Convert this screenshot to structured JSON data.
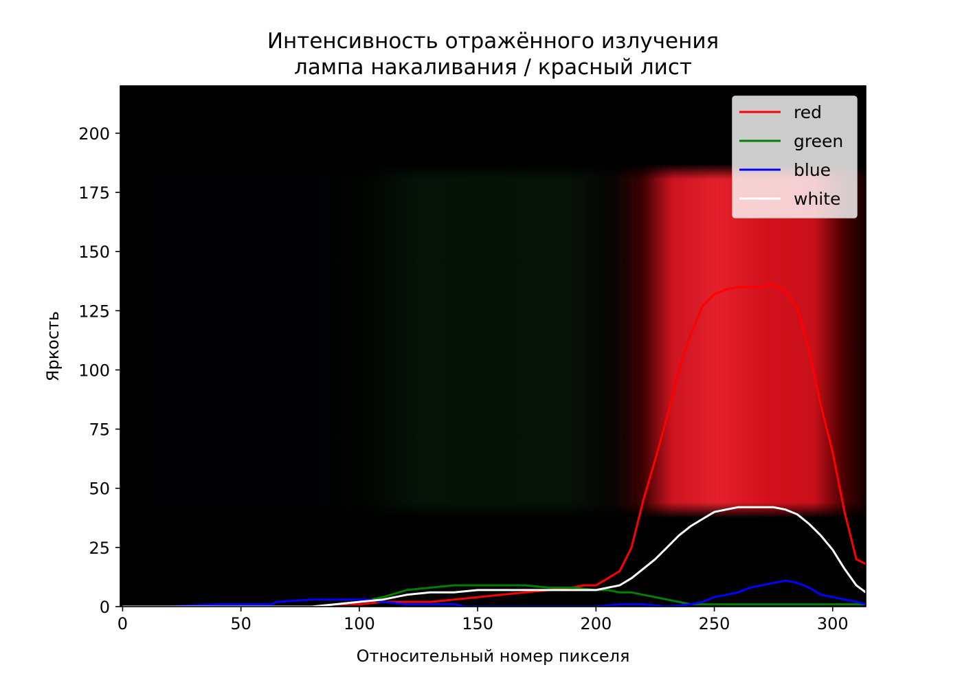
{
  "chart_data": {
    "type": "line",
    "title": [
      "Интенсивность отражённого излучения",
      "лампа накаливания / красный лист"
    ],
    "xlabel": "Относительный номер пикселя",
    "ylabel": "Яркость",
    "xlim": [
      -1,
      314
    ],
    "ylim": [
      0,
      220
    ],
    "xticks": [
      0,
      50,
      100,
      150,
      200,
      250,
      300
    ],
    "yticks": [
      0,
      25,
      50,
      75,
      100,
      125,
      150,
      175,
      200
    ],
    "background": "spectrum image: dark blue 30-90, faint green 110-200, bright red 215-305, band brightness 40-180",
    "grid": false,
    "legend_position": "top-right",
    "series": [
      {
        "name": "red",
        "color": "#ff0000",
        "x": [
          0,
          20,
          40,
          60,
          80,
          90,
          100,
          110,
          120,
          130,
          140,
          150,
          160,
          170,
          180,
          190,
          195,
          200,
          205,
          210,
          215,
          220,
          225,
          230,
          235,
          240,
          245,
          250,
          255,
          260,
          265,
          270,
          275,
          280,
          285,
          290,
          295,
          300,
          305,
          310,
          314
        ],
        "y": [
          0,
          0,
          0,
          0,
          0,
          1,
          1,
          2,
          2,
          2,
          3,
          4,
          5,
          6,
          7,
          8,
          9,
          9,
          12,
          15,
          25,
          45,
          62,
          80,
          100,
          115,
          127,
          132,
          134,
          135,
          135,
          135,
          136,
          133,
          126,
          108,
          85,
          65,
          40,
          20,
          18
        ]
      },
      {
        "name": "green",
        "color": "#008000",
        "x": [
          0,
          20,
          40,
          60,
          80,
          90,
          100,
          110,
          120,
          130,
          140,
          150,
          160,
          170,
          180,
          190,
          200,
          205,
          210,
          215,
          220,
          225,
          230,
          235,
          240,
          245,
          250,
          260,
          270,
          280,
          290,
          300,
          310,
          314
        ],
        "y": [
          0,
          0,
          0,
          0,
          0,
          1,
          2,
          4,
          7,
          8,
          9,
          9,
          9,
          9,
          8,
          8,
          7,
          7,
          6,
          6,
          5,
          4,
          3,
          2,
          1,
          1,
          1,
          1,
          1,
          1,
          1,
          1,
          1,
          1
        ]
      },
      {
        "name": "blue",
        "color": "#0000ff",
        "x": [
          0,
          20,
          40,
          60,
          63,
          65,
          80,
          90,
          95,
          100,
          105,
          108,
          110,
          120,
          130,
          140,
          145,
          150,
          160,
          170,
          180,
          190,
          200,
          210,
          220,
          230,
          240,
          245,
          250,
          255,
          260,
          265,
          270,
          275,
          280,
          285,
          290,
          295,
          300,
          305,
          310,
          314
        ],
        "y": [
          0,
          0,
          1,
          1,
          1,
          2,
          3,
          3,
          3,
          3,
          3,
          2,
          2,
          1,
          1,
          1,
          0,
          0,
          0,
          0,
          0,
          0,
          0,
          1,
          1,
          0,
          1,
          2,
          4,
          5,
          6,
          8,
          9,
          10,
          11,
          10,
          8,
          5,
          4,
          3,
          2,
          1
        ]
      },
      {
        "name": "white",
        "color": "#ffffff",
        "x": [
          0,
          20,
          40,
          60,
          80,
          90,
          100,
          110,
          120,
          130,
          140,
          150,
          160,
          170,
          180,
          190,
          200,
          205,
          210,
          215,
          220,
          225,
          230,
          235,
          240,
          245,
          250,
          255,
          260,
          265,
          270,
          275,
          280,
          285,
          290,
          295,
          300,
          305,
          310,
          314
        ],
        "y": [
          0,
          0,
          0,
          0,
          0,
          1,
          2,
          3,
          5,
          6,
          6,
          7,
          7,
          7,
          7,
          7,
          7,
          8,
          9,
          12,
          16,
          20,
          25,
          30,
          34,
          37,
          40,
          41,
          42,
          42,
          42,
          42,
          41,
          39,
          35,
          30,
          24,
          16,
          9,
          6
        ]
      }
    ]
  }
}
